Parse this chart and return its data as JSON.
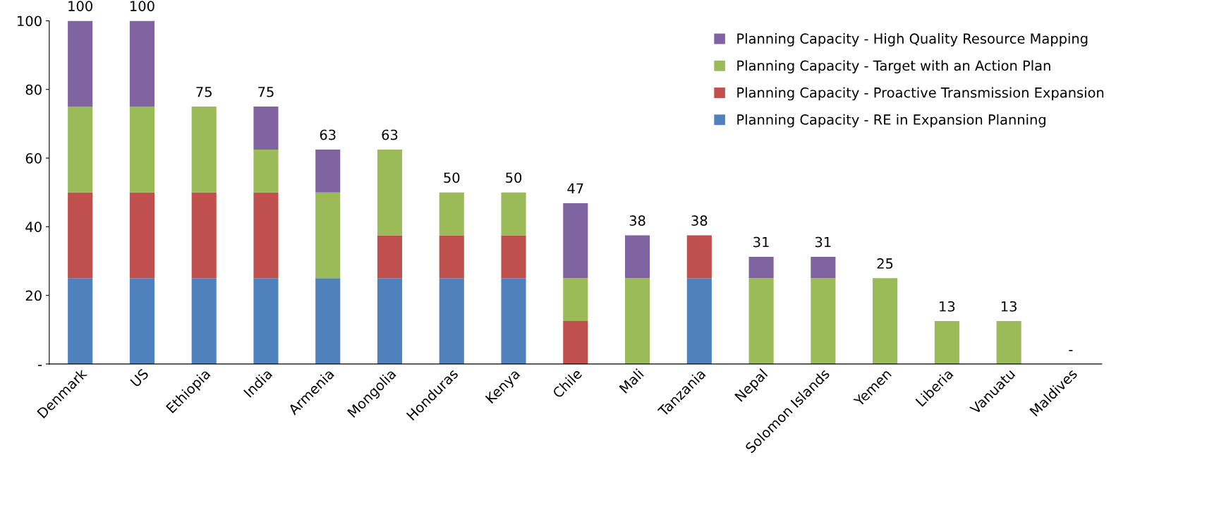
{
  "chart_data": {
    "type": "bar",
    "stacked": true,
    "categories": [
      "Denmark",
      "US",
      "Ethiopia",
      "India",
      "Armenia",
      "Mongolia",
      "Honduras",
      "Kenya",
      "Chile",
      "Mali",
      "Tanzania",
      "Nepal",
      "Solomon Islands",
      "Yemen",
      "Liberia",
      "Vanuatu",
      "Maldives"
    ],
    "series": [
      {
        "name": "Planning Capacity - RE in Expansion Planning",
        "color": "#4f81bd",
        "values": [
          25,
          25,
          25,
          25,
          25,
          25,
          25,
          25,
          null,
          null,
          25,
          null,
          null,
          null,
          null,
          null,
          null
        ]
      },
      {
        "name": "Planning Capacity - Proactive Transmission Expansion",
        "color": "#c0504d",
        "values": [
          25,
          25,
          25,
          25,
          null,
          12.5,
          12.5,
          12.5,
          12.5,
          null,
          12.5,
          null,
          null,
          null,
          null,
          null,
          null
        ]
      },
      {
        "name": "Planning Capacity - Target with an Action Plan",
        "color": "#9bbb59",
        "values": [
          25,
          25,
          25,
          12.5,
          25,
          25,
          12.5,
          12.5,
          12.5,
          25,
          null,
          25,
          25,
          25,
          12.5,
          12.5,
          null
        ]
      },
      {
        "name": "Planning Capacity - High Quality Resource Mapping",
        "color": "#8064a2",
        "values": [
          25,
          25,
          null,
          12.5,
          12.5,
          null,
          null,
          null,
          21.875,
          12.5,
          null,
          6.25,
          6.25,
          null,
          null,
          null,
          null
        ]
      }
    ],
    "totals": [
      "100",
      "100",
      "75",
      "75",
      "63",
      "63",
      "50",
      "50",
      "47",
      "38",
      "38",
      "31",
      "31",
      "25",
      "13",
      "13",
      "-"
    ],
    "ylim": [
      0,
      100
    ],
    "yticks": [
      {
        "value": 0,
        "label": "-"
      },
      20,
      40,
      60,
      80,
      100
    ],
    "grid": false,
    "legend": "top right"
  }
}
